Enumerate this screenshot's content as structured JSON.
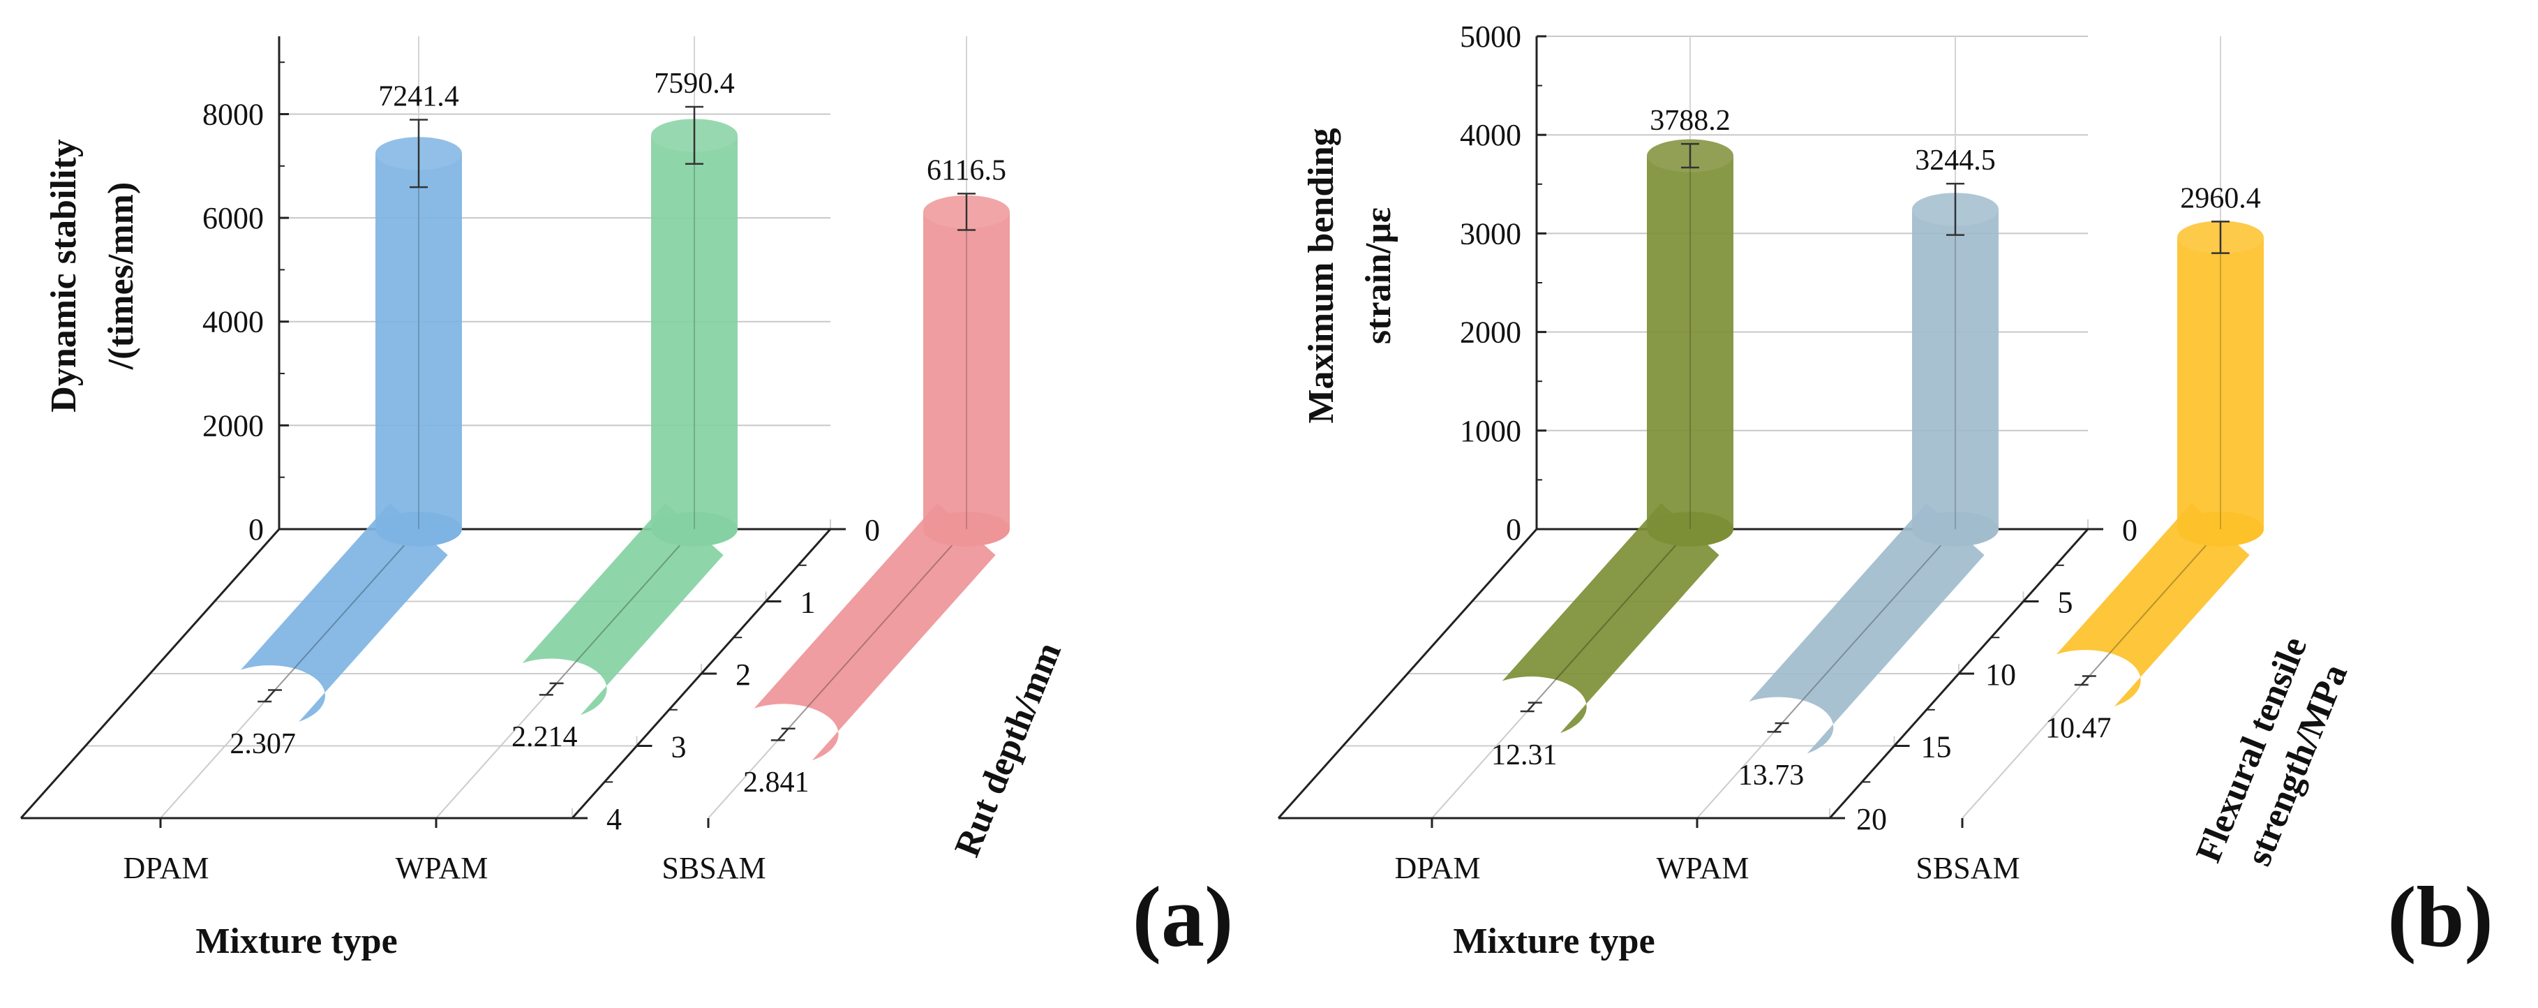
{
  "chart_data": [
    {
      "type": "bar",
      "panel_label": "(a)",
      "xlabel": "Mixture type",
      "categories": [
        "DPAM",
        "WPAM",
        "SBSAM"
      ],
      "ylabel_lines": [
        "Dynamic stability",
        "/(times/mm)"
      ],
      "yticks": [
        "0",
        "2000",
        "4000",
        "6000",
        "8000"
      ],
      "ylim": [
        0,
        9500
      ],
      "zlabel": "Rut depth/mm",
      "zticks": [
        "0",
        "1",
        "2",
        "3",
        "4"
      ],
      "zlim": [
        0,
        4
      ],
      "grid": true,
      "series": [
        {
          "name": "Dynamic stability",
          "values": [
            7241.4,
            7590.4,
            6116.5
          ],
          "labels": [
            "7241.4",
            "7590.4",
            "6116.5"
          ],
          "errors": [
            650,
            550,
            350
          ]
        },
        {
          "name": "Rut depth",
          "values": [
            2.307,
            2.214,
            2.841
          ],
          "labels": [
            "2.307",
            "2.214",
            "2.841"
          ],
          "errors": [
            0.08,
            0.08,
            0.08
          ]
        }
      ],
      "colors": [
        "#7eb4e3",
        "#86d1a3",
        "#ee9598"
      ]
    },
    {
      "type": "bar",
      "panel_label": "(b)",
      "xlabel": "Mixture type",
      "categories": [
        "DPAM",
        "WPAM",
        "SBSAM"
      ],
      "ylabel_lines": [
        "Maximum bending",
        "strain/με"
      ],
      "yticks": [
        "0",
        "1000",
        "2000",
        "3000",
        "4000",
        "5000"
      ],
      "ylim": [
        0,
        5000
      ],
      "zlabel_lines": [
        "Flexural tensile",
        "strength/MPa"
      ],
      "zticks": [
        "0",
        "5",
        "10",
        "15",
        "20"
      ],
      "zlim": [
        0,
        20
      ],
      "grid": true,
      "series": [
        {
          "name": "Maximum bending strain",
          "values": [
            3788.2,
            3244.5,
            2960.4
          ],
          "labels": [
            "3788.2",
            "3244.5",
            "2960.4"
          ],
          "errors": [
            120,
            260,
            160
          ]
        },
        {
          "name": "Flexural tensile strength",
          "values": [
            12.31,
            13.73,
            10.47
          ],
          "labels": [
            "12.31",
            "13.73",
            "10.47"
          ],
          "errors": [
            0.3,
            0.3,
            0.3
          ]
        }
      ],
      "colors": [
        "#7d8f36",
        "#a1bccd",
        "#fdc12a"
      ]
    }
  ]
}
